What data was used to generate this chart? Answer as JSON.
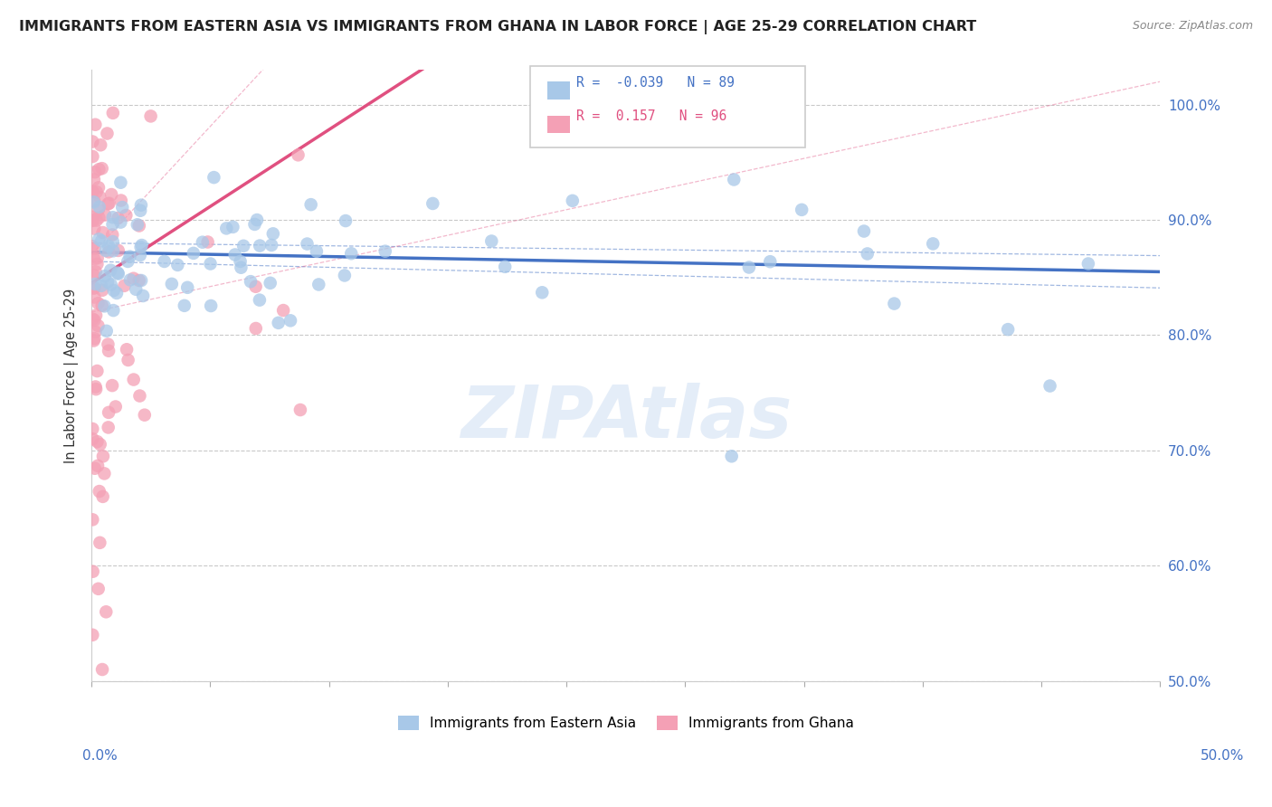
{
  "title": "IMMIGRANTS FROM EASTERN ASIA VS IMMIGRANTS FROM GHANA IN LABOR FORCE | AGE 25-29 CORRELATION CHART",
  "source": "Source: ZipAtlas.com",
  "ylabel": "In Labor Force | Age 25-29",
  "x_range": [
    0.0,
    0.5
  ],
  "y_range": [
    0.5,
    1.03
  ],
  "R_eastern": -0.039,
  "N_eastern": 89,
  "R_ghana": 0.157,
  "N_ghana": 96,
  "color_eastern": "#A8C8E8",
  "color_ghana": "#F4A0B5",
  "line_color_eastern": "#4472C4",
  "line_color_ghana": "#E05080",
  "legend_label_eastern": "Immigrants from Eastern Asia",
  "legend_label_ghana": "Immigrants from Ghana",
  "watermark": "ZIPAtlas",
  "y_ticks": [
    0.5,
    0.6,
    0.7,
    0.8,
    0.9,
    1.0
  ],
  "y_tick_labels": [
    "50.0%",
    "60.0%",
    "70.0%",
    "80.0%",
    "90.0%",
    "100.0%"
  ]
}
